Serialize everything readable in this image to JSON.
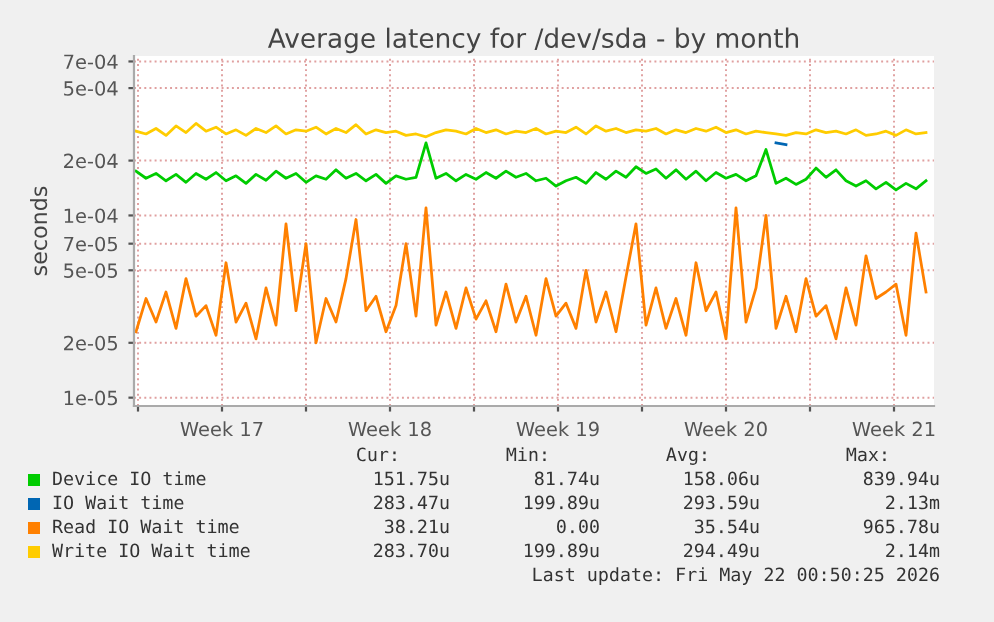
{
  "chart_data": {
    "type": "line",
    "title": "Average latency for /dev/sda - by month",
    "ylabel": "seconds",
    "log": "y",
    "grid": true,
    "legend": "bottom",
    "line_style": "solid",
    "marker": "none",
    "ylim": [
      9e-06,
      0.00075
    ],
    "yticks": [
      {
        "value": 1e-05,
        "label": "1e-05"
      },
      {
        "value": 2e-05,
        "label": "2e-05"
      },
      {
        "value": 5e-05,
        "label": "5e-05"
      },
      {
        "value": 7e-05,
        "label": "7e-05"
      },
      {
        "value": 0.0001,
        "label": "1e-04"
      },
      {
        "value": 0.0002,
        "label": "2e-04"
      },
      {
        "value": 0.0005,
        "label": "5e-04"
      },
      {
        "value": 0.0007,
        "label": "7e-04"
      }
    ],
    "xlim": [
      "2026-04-19T20:00",
      "2026-05-23T04:00"
    ],
    "xticks": [
      {
        "value": "2026-04-20T00:00",
        "label": null
      },
      {
        "value": "2026-04-23T12:00",
        "label": "Week 17"
      },
      {
        "value": "2026-04-27T00:00",
        "label": null
      },
      {
        "value": "2026-04-30T12:00",
        "label": "Week 18"
      },
      {
        "value": "2026-05-04T00:00",
        "label": null
      },
      {
        "value": "2026-05-07T12:00",
        "label": "Week 19"
      },
      {
        "value": "2026-05-11T00:00",
        "label": null
      },
      {
        "value": "2026-05-14T12:00",
        "label": "Week 20"
      },
      {
        "value": "2026-05-18T00:00",
        "label": null
      },
      {
        "value": "2026-05-21T12:00",
        "label": "Week 21"
      }
    ],
    "x": [
      "2026-04-19T22:00",
      "2026-04-20T08:00",
      "2026-04-20T18:00",
      "2026-04-21T04:00",
      "2026-04-21T14:00",
      "2026-04-22T00:00",
      "2026-04-22T10:00",
      "2026-04-22T20:00",
      "2026-04-23T06:00",
      "2026-04-23T16:00",
      "2026-04-24T02:00",
      "2026-04-24T12:00",
      "2026-04-24T22:00",
      "2026-04-25T08:00",
      "2026-04-25T18:00",
      "2026-04-26T04:00",
      "2026-04-26T14:00",
      "2026-04-27T00:00",
      "2026-04-27T10:00",
      "2026-04-27T20:00",
      "2026-04-28T06:00",
      "2026-04-28T16:00",
      "2026-04-29T02:00",
      "2026-04-29T12:00",
      "2026-04-29T22:00",
      "2026-04-30T08:00",
      "2026-04-30T18:00",
      "2026-05-01T04:00",
      "2026-05-01T14:00",
      "2026-05-02T00:00",
      "2026-05-02T10:00",
      "2026-05-02T20:00",
      "2026-05-03T06:00",
      "2026-05-03T16:00",
      "2026-05-04T02:00",
      "2026-05-04T12:00",
      "2026-05-04T22:00",
      "2026-05-05T08:00",
      "2026-05-05T18:00",
      "2026-05-06T04:00",
      "2026-05-06T14:00",
      "2026-05-07T00:00",
      "2026-05-07T10:00",
      "2026-05-07T20:00",
      "2026-05-08T06:00",
      "2026-05-08T16:00",
      "2026-05-09T02:00",
      "2026-05-09T12:00",
      "2026-05-09T22:00",
      "2026-05-10T08:00",
      "2026-05-10T18:00",
      "2026-05-11T04:00",
      "2026-05-11T14:00",
      "2026-05-12T00:00",
      "2026-05-12T10:00",
      "2026-05-12T20:00",
      "2026-05-13T06:00",
      "2026-05-13T16:00",
      "2026-05-14T02:00",
      "2026-05-14T12:00",
      "2026-05-14T22:00",
      "2026-05-15T08:00",
      "2026-05-15T18:00",
      "2026-05-16T04:00",
      "2026-05-16T14:00",
      "2026-05-17T00:00",
      "2026-05-17T10:00",
      "2026-05-17T20:00",
      "2026-05-18T06:00",
      "2026-05-18T16:00",
      "2026-05-19T02:00",
      "2026-05-19T12:00",
      "2026-05-19T22:00",
      "2026-05-20T08:00",
      "2026-05-20T18:00",
      "2026-05-21T04:00",
      "2026-05-21T14:00",
      "2026-05-22T00:00",
      "2026-05-22T10:00",
      "2026-05-22T20:00"
    ],
    "series": [
      {
        "name": "Device IO time",
        "color": "#00cc00",
        "values": [
          0.000175,
          0.00016,
          0.00017,
          0.000155,
          0.000168,
          0.000152,
          0.00017,
          0.000158,
          0.000172,
          0.000155,
          0.000165,
          0.00015,
          0.000168,
          0.000156,
          0.000175,
          0.00016,
          0.00017,
          0.000152,
          0.000165,
          0.000158,
          0.000178,
          0.00016,
          0.00017,
          0.000155,
          0.000168,
          0.00015,
          0.000165,
          0.000158,
          0.000162,
          0.00025,
          0.00016,
          0.00017,
          0.000155,
          0.000168,
          0.000158,
          0.000172,
          0.00016,
          0.000175,
          0.000162,
          0.00017,
          0.000155,
          0.00016,
          0.000145,
          0.000155,
          0.000162,
          0.00015,
          0.000172,
          0.000158,
          0.000175,
          0.000162,
          0.000185,
          0.00017,
          0.00018,
          0.00016,
          0.000178,
          0.000158,
          0.000175,
          0.000155,
          0.000172,
          0.00016,
          0.000168,
          0.000155,
          0.000165,
          0.00023,
          0.00015,
          0.00016,
          0.000148,
          0.000158,
          0.000182,
          0.000162,
          0.000178,
          0.000155,
          0.000145,
          0.000155,
          0.00014,
          0.000152,
          0.000138,
          0.00015,
          0.00014,
          0.000155
        ]
      },
      {
        "name": "IO Wait time",
        "color": "#0066b3",
        "values": [
          null,
          null,
          null,
          null,
          null,
          null,
          null,
          null,
          null,
          null,
          null,
          null,
          null,
          null,
          null,
          null,
          null,
          null,
          null,
          null,
          null,
          null,
          null,
          null,
          null,
          null,
          null,
          null,
          null,
          null,
          null,
          null,
          null,
          null,
          null,
          null,
          null,
          null,
          null,
          null,
          null,
          null,
          null,
          null,
          null,
          null,
          null,
          null,
          null,
          null,
          null,
          null,
          null,
          null,
          null,
          null,
          null,
          null,
          null,
          null,
          null,
          null,
          null,
          null,
          0.00025,
          0.000245,
          null,
          null,
          null,
          null,
          null,
          null,
          null,
          null,
          null,
          null,
          null,
          null,
          null,
          null
        ]
      },
      {
        "name": "Read IO Wait time",
        "color": "#ff8000",
        "values": [
          2.3e-05,
          3.5e-05,
          2.6e-05,
          3.8e-05,
          2.4e-05,
          4.5e-05,
          2.8e-05,
          3.2e-05,
          2.2e-05,
          5.5e-05,
          2.6e-05,
          3.3e-05,
          2.1e-05,
          4e-05,
          2.5e-05,
          9e-05,
          3e-05,
          7e-05,
          2e-05,
          3.5e-05,
          2.6e-05,
          4.5e-05,
          9.5e-05,
          3e-05,
          3.6e-05,
          2.3e-05,
          3.2e-05,
          7e-05,
          2.8e-05,
          0.00011,
          2.5e-05,
          3.8e-05,
          2.4e-05,
          4e-05,
          2.7e-05,
          3.4e-05,
          2.3e-05,
          4.2e-05,
          2.6e-05,
          3.6e-05,
          2.2e-05,
          4.5e-05,
          2.8e-05,
          3.3e-05,
          2.4e-05,
          5e-05,
          2.6e-05,
          3.8e-05,
          2.3e-05,
          4.6e-05,
          9e-05,
          2.5e-05,
          4e-05,
          2.4e-05,
          3.5e-05,
          2.2e-05,
          5.5e-05,
          3e-05,
          3.8e-05,
          2.1e-05,
          0.00011,
          2.6e-05,
          4e-05,
          0.0001,
          2.4e-05,
          3.6e-05,
          2.3e-05,
          4.5e-05,
          2.8e-05,
          3.2e-05,
          2.1e-05,
          4e-05,
          2.5e-05,
          6e-05,
          3.5e-05,
          3.8e-05,
          4.2e-05,
          2.2e-05,
          8e-05,
          3.8e-05
        ]
      },
      {
        "name": "Write IO Wait time",
        "color": "#ffcc00",
        "values": [
          0.00029,
          0.00028,
          0.0003,
          0.000275,
          0.00031,
          0.000285,
          0.00032,
          0.00029,
          0.000305,
          0.00028,
          0.000295,
          0.000275,
          0.0003,
          0.000285,
          0.00031,
          0.00028,
          0.000295,
          0.00029,
          0.000305,
          0.00028,
          0.0003,
          0.000285,
          0.000315,
          0.00028,
          0.000295,
          0.000285,
          0.00029,
          0.000275,
          0.00028,
          0.00027,
          0.000285,
          0.000295,
          0.00029,
          0.00028,
          0.0003,
          0.000285,
          0.000295,
          0.00028,
          0.00029,
          0.000285,
          0.0003,
          0.00028,
          0.00029,
          0.000285,
          0.000305,
          0.00028,
          0.00031,
          0.00029,
          0.0003,
          0.000285,
          0.000295,
          0.00029,
          0.0003,
          0.00028,
          0.000295,
          0.000285,
          0.0003,
          0.00029,
          0.000305,
          0.000285,
          0.000295,
          0.00028,
          0.00029,
          0.000285,
          0.00028,
          0.000275,
          0.000285,
          0.00028,
          0.000295,
          0.000285,
          0.00029,
          0.00028,
          0.000295,
          0.000275,
          0.00028,
          0.00029,
          0.000275,
          0.000295,
          0.00028,
          0.000285
        ]
      }
    ],
    "annotations": [
      "Cur:",
      "Min:",
      "Avg:",
      "Max:",
      "151.75u",
      "81.74u",
      "158.06u",
      "839.94u",
      "283.47u",
      "199.89u",
      "293.59u",
      "2.13m",
      "38.21u",
      "0.00",
      "35.54u",
      "965.78u",
      "283.70u",
      "199.89u",
      "294.49u",
      "2.14m",
      "Last update: Fri May 22 00:50:25 2026"
    ]
  }
}
